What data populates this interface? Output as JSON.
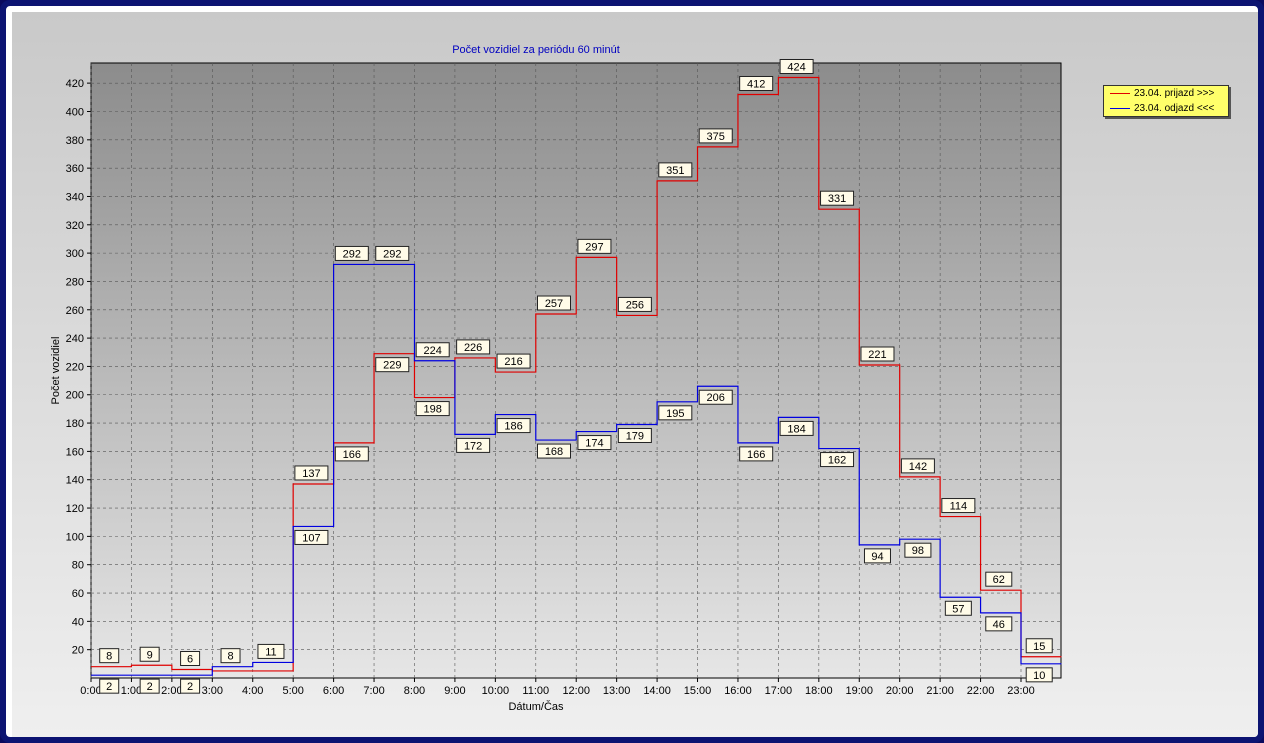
{
  "chart_data": {
    "type": "line",
    "step": true,
    "title": "Počet vozidiel za periódu 60 minút",
    "xlabel": "Dátum/Čas",
    "ylabel": "Počet vozidiel",
    "ylim": [
      0,
      430
    ],
    "yticks": [
      20,
      40,
      60,
      80,
      100,
      120,
      140,
      160,
      180,
      200,
      220,
      240,
      260,
      280,
      300,
      320,
      340,
      360,
      380,
      400,
      420
    ],
    "x_tick_labels": [
      "0:00",
      "1:00",
      "2:00",
      "3:00",
      "4:00",
      "5:00",
      "6:00",
      "7:00",
      "8:00",
      "9:00",
      "10:00",
      "11:00",
      "12:00",
      "13:00",
      "14:00",
      "15:00",
      "16:00",
      "17:00",
      "18:00",
      "19:00",
      "20:00",
      "21:00",
      "22:00",
      "23:00"
    ],
    "grid": true,
    "legend_position": "top-right",
    "series": [
      {
        "name": "23.04.  prijazd >>>",
        "color": "#e00000",
        "values": [
          8,
          9,
          6,
          5,
          5,
          137,
          166,
          229,
          198,
          226,
          216,
          257,
          297,
          256,
          351,
          375,
          412,
          424,
          331,
          221,
          142,
          114,
          62,
          15
        ]
      },
      {
        "name": "23.04.  odjazd <<<",
        "color": "#0000e0",
        "values": [
          2,
          2,
          2,
          8,
          11,
          107,
          292,
          292,
          224,
          172,
          186,
          168,
          174,
          179,
          195,
          206,
          166,
          184,
          162,
          94,
          98,
          57,
          46,
          10
        ]
      }
    ],
    "data_labels": {
      "prijazd": [
        "8",
        "9",
        "6",
        "",
        "",
        "137",
        "166",
        "229",
        "198",
        "226",
        "216",
        "257",
        "297",
        "256",
        "351",
        "375",
        "412",
        "424",
        "331",
        "221",
        "142",
        "114",
        "62",
        "15"
      ],
      "odjazd": [
        "2",
        "2",
        "2",
        "8",
        "11",
        "107",
        "292",
        "292",
        "224",
        "172",
        "186",
        "168",
        "174",
        "179",
        "195",
        "206",
        "166",
        "184",
        "162",
        "94",
        "98",
        "57",
        "46",
        "10"
      ]
    }
  }
}
